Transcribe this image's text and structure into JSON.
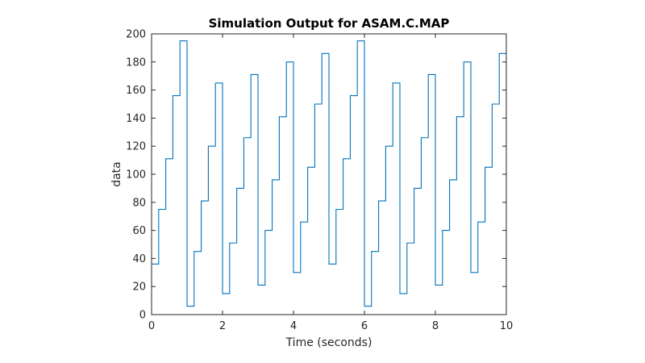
{
  "chart_data": {
    "type": "line",
    "step": true,
    "title": "Simulation Output for ASAM.C.MAP",
    "xlabel": "Time (seconds)",
    "ylabel": "data",
    "xlim": [
      0,
      10
    ],
    "ylim": [
      0,
      200
    ],
    "x_ticks": [
      0,
      2,
      4,
      6,
      8,
      10
    ],
    "y_ticks": [
      0,
      20,
      40,
      60,
      80,
      100,
      120,
      140,
      160,
      180,
      200
    ],
    "grid": false,
    "box": true,
    "colors": {
      "series": "#0072BD",
      "axes": "#262626"
    },
    "series": [
      {
        "x": [
          0,
          0.2,
          0.4,
          0.6,
          0.8,
          1.0,
          1.2,
          1.4,
          1.6,
          1.8,
          2.0,
          2.2,
          2.4,
          2.6,
          2.8,
          3.0,
          3.2,
          3.4,
          3.6,
          3.8,
          4.0,
          4.2,
          4.4,
          4.6,
          4.8,
          5.0,
          5.2,
          5.4,
          5.6,
          5.8,
          6.0,
          6.2,
          6.4,
          6.6,
          6.8,
          7.0,
          7.2,
          7.4,
          7.6,
          7.8,
          8.0,
          8.2,
          8.4,
          8.6,
          8.8,
          9.0,
          9.2,
          9.4,
          9.6,
          9.8,
          10.0
        ],
        "values": [
          36,
          75,
          111,
          156,
          195,
          6,
          45,
          81,
          120,
          165,
          15,
          51,
          90,
          126,
          171,
          21,
          60,
          96,
          141,
          180,
          30,
          66,
          105,
          150,
          186,
          36,
          75,
          111,
          156,
          195,
          6,
          45,
          81,
          120,
          165,
          15,
          51,
          90,
          126,
          171,
          21,
          60,
          96,
          141,
          180,
          30,
          66,
          105,
          150,
          186,
          186
        ]
      }
    ]
  }
}
